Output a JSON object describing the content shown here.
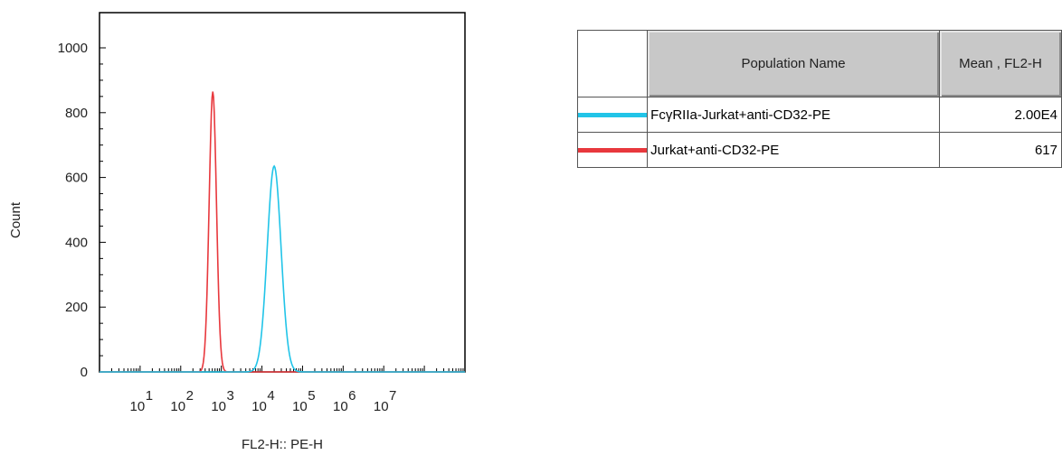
{
  "chart_data": {
    "type": "line",
    "title": "",
    "xlabel": "FL2-H:: PE-H",
    "ylabel": "Count",
    "xscale": "log",
    "xlim": [
      1,
      1000000000
    ],
    "ylim": [
      0,
      1000
    ],
    "yticks": [
      0,
      200,
      400,
      600,
      800,
      1000
    ],
    "xtick_labels": [
      {
        "base": "10",
        "exp": "1",
        "value": 10
      },
      {
        "base": "10",
        "exp": "2",
        "value": 100
      },
      {
        "base": "10",
        "exp": "3",
        "value": 1000
      },
      {
        "base": "10",
        "exp": "4",
        "value": 10000
      },
      {
        "base": "10",
        "exp": "5",
        "value": 100000
      },
      {
        "base": "10",
        "exp": "6",
        "value": 1000000
      },
      {
        "base": "10",
        "exp": "7",
        "value": 10000000
      }
    ],
    "grid": false,
    "series": [
      {
        "name": "FcγRIIa-Jurkat+anti-CD32-PE",
        "color": "#21c4e8",
        "peak_x": 20000,
        "peak_y": 635,
        "sigma_log10": 0.17
      },
      {
        "name": "Jurkat+anti-CD32-PE",
        "color": "#e8383d",
        "peak_x": 617,
        "peak_y": 865,
        "sigma_log10": 0.09
      }
    ]
  },
  "legend_table": {
    "headers": [
      "",
      "Population Name",
      "Mean , FL2-H"
    ],
    "rows": [
      {
        "color": "#21c4e8",
        "name": "FcγRIIa-Jurkat+anti-CD32-PE",
        "mean": "2.00E4"
      },
      {
        "color": "#e8383d",
        "name": "Jurkat+anti-CD32-PE",
        "mean": "617"
      }
    ]
  }
}
